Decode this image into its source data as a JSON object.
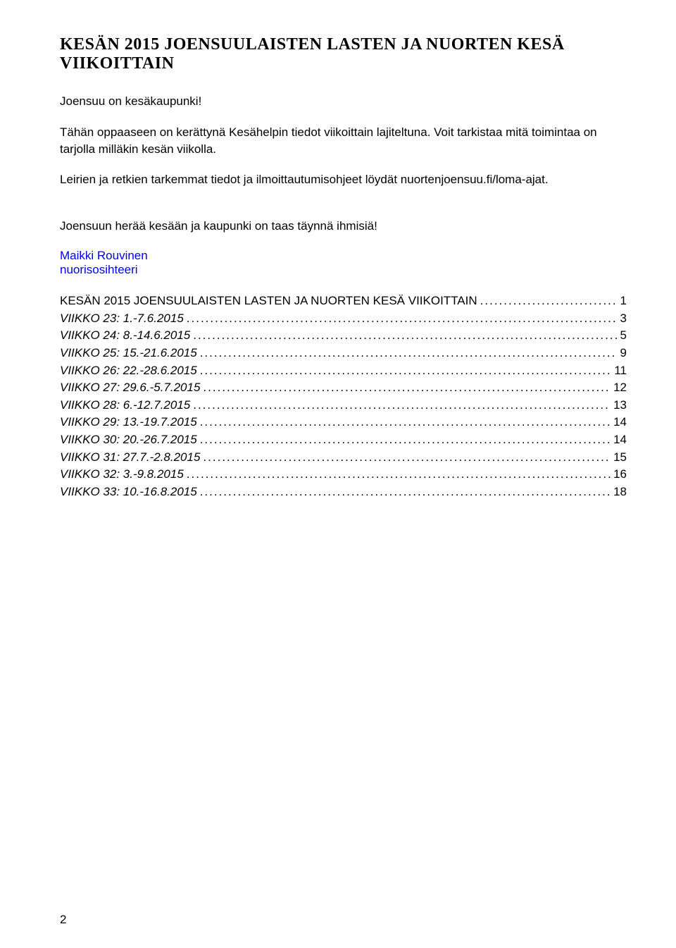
{
  "title": "KESÄN 2015 JOENSUULAISTEN LASTEN JA NUORTEN KESÄ VIIKOITTAIN",
  "intro": {
    "p1": "Joensuu on kesäkaupunki!",
    "p2": "Tähän oppaaseen on kerättynä Kesähelpin tiedot viikoittain lajiteltuna. Voit tarkistaa mitä toimintaa on tarjolla milläkin kesän viikolla.",
    "p3": "Leirien ja retkien tarkemmat tiedot ja ilmoittautumisohjeet löydät nuortenjoensuu.fi/loma-ajat.",
    "herald": "Joensuun herää kesään ja kaupunki on taas täynnä ihmisiä!"
  },
  "author": {
    "name": "Maikki Rouvinen",
    "role": "nuorisosihteeri"
  },
  "toc": {
    "header": {
      "label": "KESÄN 2015 JOENSUULAISTEN LASTEN JA NUORTEN KESÄ VIIKOITTAIN",
      "page": "1"
    },
    "items": [
      {
        "label": "VIIKKO 23: 1.-7.6.2015",
        "page": "3"
      },
      {
        "label": "VIIKKO 24: 8.-14.6.2015",
        "page": "5"
      },
      {
        "label": "VIIKKO 25: 15.-21.6.2015",
        "page": "9"
      },
      {
        "label": "VIIKKO 26: 22.-28.6.2015",
        "page": "11"
      },
      {
        "label": "VIIKKO 27: 29.6.-5.7.2015",
        "page": "12"
      },
      {
        "label": "VIIKKO 28: 6.-12.7.2015",
        "page": "13"
      },
      {
        "label": "VIIKKO 29: 13.-19.7.2015",
        "page": "14"
      },
      {
        "label": "VIIKKO 30: 20.-26.7.2015",
        "page": "14"
      },
      {
        "label": "VIIKKO 31: 27.7.-2.8.2015",
        "page": "15"
      },
      {
        "label": "VIIKKO 32: 3.-9.8.2015",
        "page": "16"
      },
      {
        "label": "VIIKKO 33: 10.-16.8.2015",
        "page": "18"
      }
    ]
  },
  "pageNumber": "2"
}
